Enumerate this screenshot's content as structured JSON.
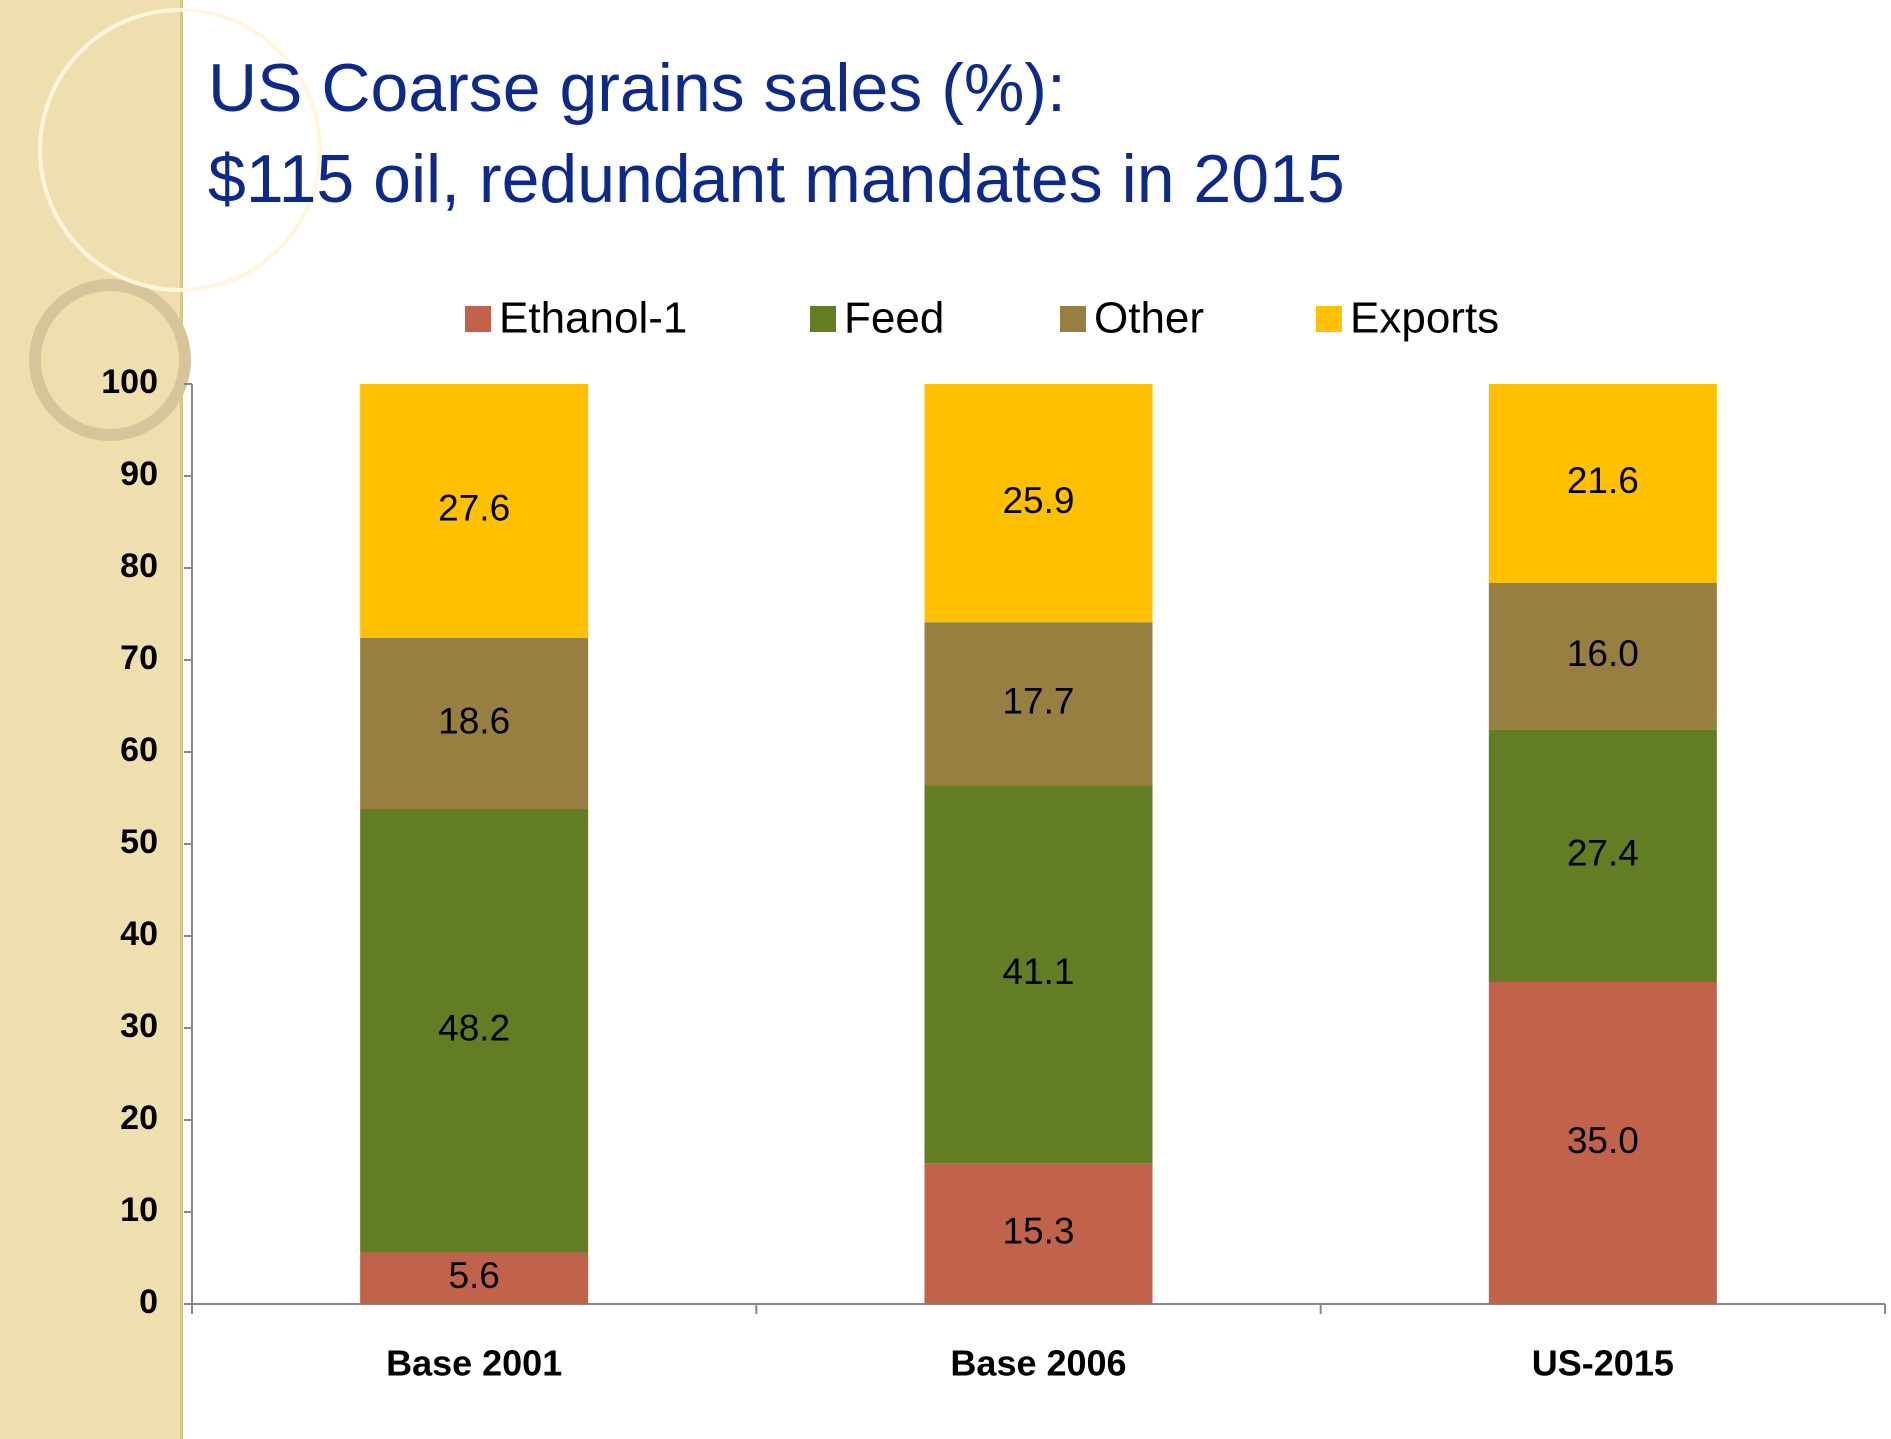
{
  "chart_data": {
    "type": "stacked_bar",
    "title": [
      "US Coarse grains sales (%):",
      "$115 oil, redundant mandates in 2015"
    ],
    "categories": [
      "Base 2001",
      "Base 2006",
      "US-2015"
    ],
    "series": [
      {
        "name": "Ethanol-1",
        "color": "#c0634a",
        "values": [
          5.6,
          15.3,
          35.0
        ],
        "value_labels": [
          "5.6",
          "15.3",
          "35.0"
        ]
      },
      {
        "name": "Feed",
        "color": "#627d24",
        "values": [
          48.2,
          41.1,
          27.4
        ],
        "value_labels": [
          "48.2",
          "41.1",
          "27.4"
        ]
      },
      {
        "name": "Other",
        "color": "#977f42",
        "values": [
          18.6,
          17.7,
          16.0
        ],
        "value_labels": [
          "18.6",
          "17.7",
          "16.0"
        ]
      },
      {
        "name": "Exports",
        "color": "#ffc000",
        "values": [
          27.6,
          25.9,
          21.6
        ],
        "value_labels": [
          "27.6",
          "25.9",
          "21.6"
        ]
      }
    ],
    "ylim": [
      0,
      100
    ],
    "yticks": [
      0,
      10,
      20,
      30,
      40,
      50,
      60,
      70,
      80,
      90,
      100
    ],
    "grid": false,
    "legend": "top"
  }
}
